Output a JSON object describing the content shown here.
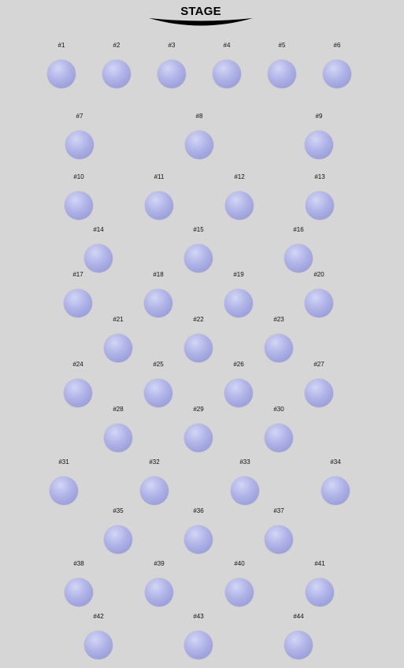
{
  "stage": {
    "label": "STAGE",
    "arc_color": "#000000"
  },
  "seat_color": "#a3a8e0",
  "seats": [
    "#1",
    "#2",
    "#3",
    "#4",
    "#5",
    "#6",
    "#7",
    "#8",
    "#9",
    "#10",
    "#11",
    "#12",
    "#13",
    "#14",
    "#15",
    "#16",
    "#17",
    "#18",
    "#19",
    "#20",
    "#21",
    "#22",
    "#23",
    "#24",
    "#25",
    "#26",
    "#27",
    "#28",
    "#29",
    "#30",
    "#31",
    "#32",
    "#33",
    "#34",
    "#35",
    "#36",
    "#37",
    "#38",
    "#39",
    "#40",
    "#41",
    "#42",
    "#43",
    "#44"
  ]
}
